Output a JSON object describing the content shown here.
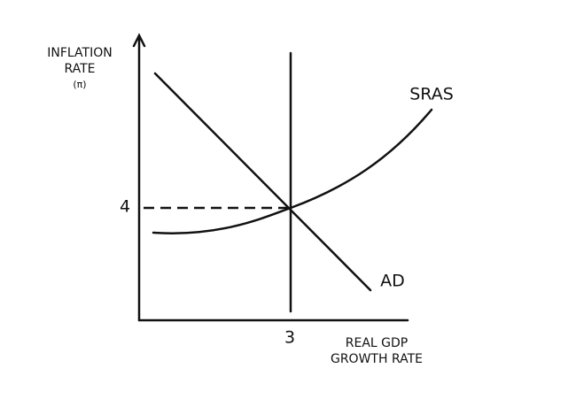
{
  "y_axis": {
    "label": [
      "INFLATION",
      "RATE"
    ],
    "symbol": "(π)"
  },
  "x_axis": {
    "label": [
      "REAL GDP",
      "GROWTH RATE"
    ]
  },
  "curves": [
    {
      "label": "SRAS"
    },
    {
      "label": "AD"
    }
  ],
  "equilibrium": {
    "x_label": 3,
    "y_label": 4
  }
}
